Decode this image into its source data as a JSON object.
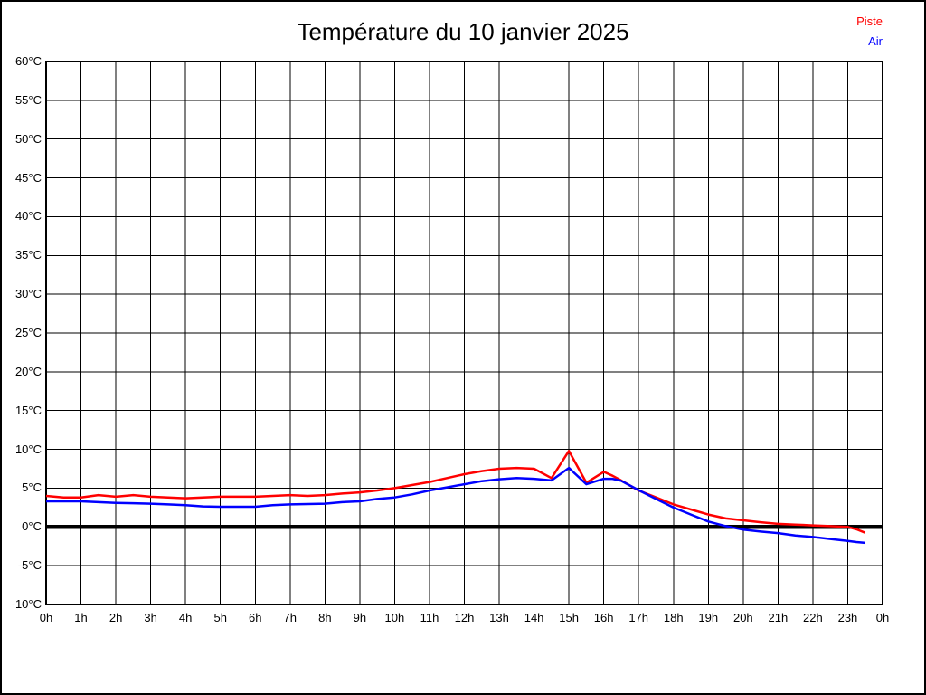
{
  "header": {
    "title": "Température du 10 janvier 2025"
  },
  "chart_data": {
    "type": "line",
    "title": "Température du 10 janvier 2025",
    "xlabel": "",
    "ylabel": "",
    "x_unit": "hour of day",
    "y_unit": "°C",
    "xlim": [
      0,
      24
    ],
    "ylim": [
      -10,
      60
    ],
    "grid": true,
    "zero_line_bold": true,
    "legend_position": "top-right",
    "x_tick_values": [
      0,
      1,
      2,
      3,
      4,
      5,
      6,
      7,
      8,
      9,
      10,
      11,
      12,
      13,
      14,
      15,
      16,
      17,
      18,
      19,
      20,
      21,
      22,
      23,
      24
    ],
    "x_tick_labels": [
      "0h",
      "1h",
      "2h",
      "3h",
      "4h",
      "5h",
      "6h",
      "7h",
      "8h",
      "9h",
      "10h",
      "11h",
      "12h",
      "13h",
      "14h",
      "15h",
      "16h",
      "17h",
      "18h",
      "19h",
      "20h",
      "21h",
      "22h",
      "23h",
      "0h"
    ],
    "y_tick_values": [
      60,
      55,
      50,
      45,
      40,
      35,
      30,
      25,
      20,
      15,
      10,
      5,
      0,
      -5,
      -10
    ],
    "y_tick_labels": [
      "60°C",
      "55°C",
      "50°C",
      "45°C",
      "40°C",
      "35°C",
      "30°C",
      "25°C",
      "20°C",
      "15°C",
      "10°C",
      "5°C",
      "0°C",
      "-5°C",
      "-10°C"
    ],
    "x": [
      0,
      0.5,
      1,
      1.5,
      2,
      2.5,
      3,
      3.5,
      4,
      4.5,
      5,
      5.5,
      6,
      6.5,
      7,
      7.5,
      8,
      8.5,
      9,
      9.5,
      10,
      10.5,
      11,
      11.5,
      12,
      12.5,
      13,
      13.5,
      14,
      14.5,
      15,
      15.5,
      16,
      16.25,
      16.5,
      17,
      17.5,
      18,
      18.5,
      19,
      19.5,
      20,
      20.5,
      21,
      21.5,
      22,
      22.5,
      23,
      23.25,
      23.5
    ],
    "series": [
      {
        "name": "Piste",
        "color": "#ff0000",
        "values": [
          4.0,
          3.8,
          3.8,
          4.1,
          3.9,
          4.1,
          3.9,
          3.8,
          3.7,
          3.8,
          3.9,
          3.9,
          3.9,
          4.0,
          4.1,
          4.0,
          4.1,
          4.3,
          4.45,
          4.7,
          5.0,
          5.4,
          5.8,
          6.3,
          6.8,
          7.2,
          7.5,
          7.6,
          7.5,
          6.3,
          9.8,
          5.7,
          7.1,
          6.6,
          6.0,
          4.7,
          3.8,
          2.9,
          2.25,
          1.6,
          1.1,
          0.85,
          0.6,
          0.4,
          0.3,
          0.2,
          0.1,
          0.0,
          -0.3,
          -0.75
        ]
      },
      {
        "name": "Air",
        "color": "#0000ff",
        "values": [
          3.3,
          3.3,
          3.3,
          3.2,
          3.1,
          3.05,
          3.0,
          2.9,
          2.8,
          2.65,
          2.6,
          2.6,
          2.6,
          2.8,
          2.9,
          2.95,
          3.0,
          3.2,
          3.3,
          3.6,
          3.8,
          4.2,
          4.7,
          5.1,
          5.5,
          5.9,
          6.15,
          6.3,
          6.2,
          6.0,
          7.6,
          5.5,
          6.2,
          6.2,
          5.95,
          4.75,
          3.6,
          2.5,
          1.6,
          0.7,
          0.1,
          -0.35,
          -0.6,
          -0.8,
          -1.1,
          -1.3,
          -1.55,
          -1.8,
          -1.95,
          -2.05
        ]
      }
    ]
  }
}
